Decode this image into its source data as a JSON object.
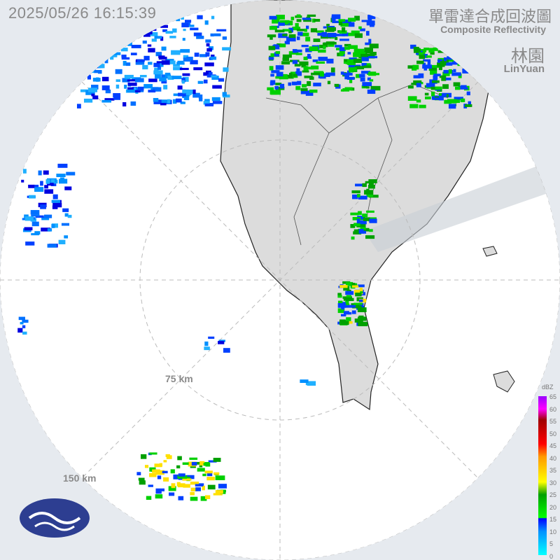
{
  "header": {
    "timestamp": "2025/05/26 16:15:39",
    "title_zh": "單雷達合成回波圖",
    "title_en": "Composite Reflectivity",
    "station_zh": "林園",
    "station_en": "LinYuan"
  },
  "rings": [
    {
      "label": "75 km"
    },
    {
      "label": "150 km"
    }
  ],
  "legend": {
    "unit": "dBZ",
    "ticks": [
      "65",
      "60",
      "55",
      "50",
      "45",
      "40",
      "35",
      "30",
      "25",
      "20",
      "15",
      "10",
      "5",
      "0"
    ]
  },
  "colors": {
    "background": "#e6eaef",
    "radar_area": "#ffffff",
    "land": "#dcdcdc",
    "weak_echo": "#0040ff",
    "moderate_echo": "#00d000",
    "strong_echo": "#ffe000"
  },
  "logo": {
    "name": "cwa-logo"
  }
}
